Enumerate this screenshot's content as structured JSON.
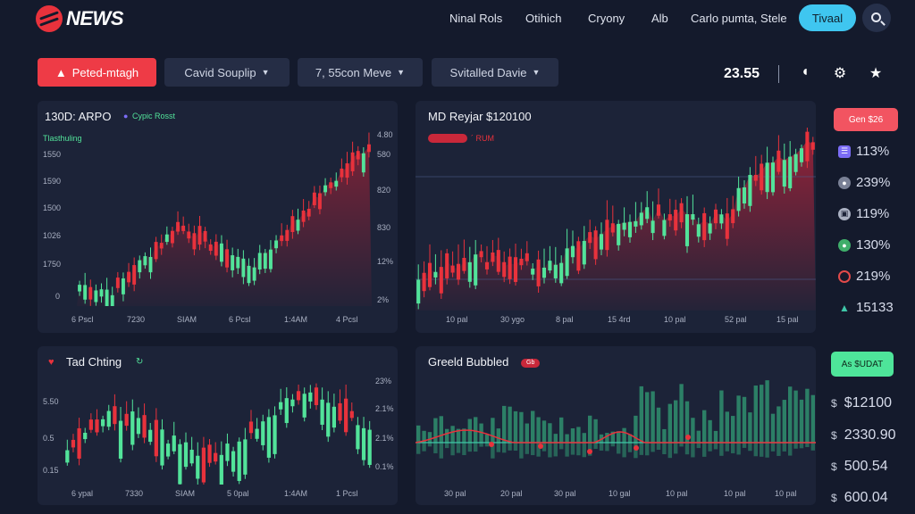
{
  "header": {
    "brand": "NEWS",
    "nav": [
      "Ninal Rols",
      "Otihich",
      "Cryony",
      "Alb",
      "Carlo pumta, Stele"
    ],
    "cta_label": "Tivaal",
    "search_icon": "search-icon"
  },
  "filters": {
    "active_label": "Peted-mtagh",
    "dropdowns": [
      "Cavid Souplip",
      "7, 55con Meve",
      "Svitalled Davie"
    ]
  },
  "toolbar": {
    "price": "23.55",
    "icons": [
      "bird-icon",
      "settings-icon",
      "star-icon"
    ]
  },
  "panels": {
    "top_left": {
      "title": "130D: ARPO",
      "tag": "Cypic Rosst",
      "subtitle": "Tlasthuling",
      "y_left": [
        "1550",
        "1590",
        "1500",
        "1026",
        "1750",
        "0"
      ],
      "y_right": [
        "4.80",
        "580",
        "820",
        "830",
        "12%",
        "2%"
      ],
      "x": [
        "6 Pscl",
        "7230",
        "SIAM",
        "6 Pcsl",
        "1:4AM",
        "4 Pcsl"
      ]
    },
    "top_right": {
      "title": "MD Reyjar $120100",
      "badge": "",
      "subtitle": "´ RUM",
      "x": [
        "10 pal",
        "30 ygo",
        "8 pal",
        "15 4rd",
        "10 pal",
        "52 pal",
        "15 pal"
      ]
    },
    "bottom_left": {
      "title": "Tad Chting",
      "y_left": [
        "5.50",
        "0.5",
        "0.15"
      ],
      "y_right": [
        "23%",
        "2.1%",
        "2.1%",
        "0.1%"
      ],
      "x": [
        "6 ypal",
        "7330",
        "SIAM",
        "5 0pal",
        "1:4AM",
        "1 Pcsl"
      ]
    },
    "bottom_right": {
      "title": "Greeld Bubbled",
      "tag": "Gb",
      "x": [
        "30 pal",
        "20 pal",
        "30 pal",
        "10 gal",
        "10 pal",
        "10 pal",
        "10 pal"
      ]
    }
  },
  "sidebar": {
    "top_button": "Gen $26",
    "stats": [
      {
        "icon": "layers-icon",
        "value": "113%",
        "color": "#7b6cf6"
      },
      {
        "icon": "coin-icon",
        "value": "239%",
        "color": "#7a8196"
      },
      {
        "icon": "wallet-icon",
        "value": "119%",
        "color": "#aab1c2"
      },
      {
        "icon": "leaf-icon",
        "value": "130%",
        "color": "#3fae6a"
      },
      {
        "icon": "fire-icon",
        "value": "219%",
        "color": "#e24a4a"
      },
      {
        "icon": "chart-icon",
        "value": "15133",
        "color": "#3fc6a8"
      }
    ],
    "bottom_button": "As $UDAT",
    "prices": [
      "$12100",
      "2330.90",
      "500.54",
      "600.04"
    ]
  },
  "colors": {
    "bg": "#141a2c",
    "panel": "#1c2338",
    "up": "#52e39a",
    "down": "#e8323c",
    "accent": "#3fc6f0"
  }
}
